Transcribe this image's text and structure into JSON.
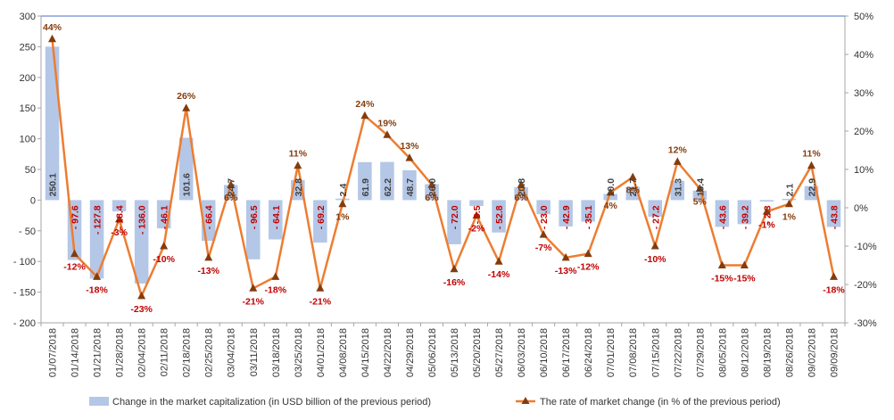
{
  "chart_data": {
    "type": "bar",
    "categories": [
      "01/07/2018",
      "01/14/2018",
      "01/21/2018",
      "01/28/2018",
      "02/04/2018",
      "02/11/2018",
      "02/18/2018",
      "02/25/2018",
      "03/04/2018",
      "03/11/2018",
      "03/18/2018",
      "03/25/2018",
      "04/01/2018",
      "04/08/2018",
      "04/15/2018",
      "04/22/2018",
      "04/29/2018",
      "05/06/2018",
      "05/13/2018",
      "05/20/2018",
      "05/27/2018",
      "06/03/2018",
      "06/10/2018",
      "06/17/2018",
      "06/24/2018",
      "07/01/2018",
      "07/08/2018",
      "07/15/2018",
      "07/22/2018",
      "07/29/2018",
      "08/05/2018",
      "08/12/2018",
      "08/19/2018",
      "08/26/2018",
      "09/02/2018",
      "09/09/2018"
    ],
    "series": [
      {
        "name": "Change in the market capitalization  (in USD billion of the previous period)",
        "type": "bar",
        "axis": "left",
        "values": [
          250.1,
          -97.6,
          -127.8,
          -18.4,
          -136.0,
          -46.1,
          101.6,
          -66.4,
          24.7,
          -96.5,
          -64.1,
          32.8,
          -69.2,
          2.4,
          61.9,
          62.2,
          48.7,
          26.0,
          -72.0,
          -9.5,
          -52.8,
          20.8,
          -23.0,
          -42.9,
          -35.1,
          10.0,
          21.7,
          -27.2,
          31.3,
          15.4,
          -43.6,
          -39.2,
          -2.3,
          2.1,
          22.9,
          -43.8
        ],
        "labels": [
          "250.1",
          "- 97.6",
          "- 127.8",
          "- 18.4",
          "- 136.0",
          "- 46.1",
          "101.6",
          "- 66.4",
          "24.7",
          "- 96.5",
          "- 64.1",
          "32.8",
          "- 69.2",
          "2.4",
          "61.9",
          "62.2",
          "48.7",
          "26.0",
          "- 72.0",
          "- 9.5",
          "- 52.8",
          "20.8",
          "- 23.0",
          "- 42.9",
          "- 35.1",
          "10.0",
          "21.7",
          "- 27.2",
          "31.3",
          "15.4",
          "- 43.6",
          "- 39.2",
          "- 2.3",
          "2.1",
          "22.9",
          "- 43.8"
        ]
      },
      {
        "name": "The rate of market change (in % of the previous period)",
        "type": "line",
        "axis": "right",
        "values": [
          44,
          -12,
          -18,
          -3,
          -23,
          -10,
          26,
          -13,
          6,
          -21,
          -18,
          11,
          -21,
          1,
          24,
          19,
          13,
          6,
          -16,
          -2,
          -14,
          6,
          -7,
          -13,
          -12,
          4,
          8,
          -10,
          12,
          5,
          -15,
          -15,
          -1,
          1,
          11,
          -18
        ],
        "labels": [
          "44%",
          "-12%",
          "-18%",
          "-3%",
          "-23%",
          "-10%",
          "26%",
          "-13%",
          "6%",
          "-21%",
          "-18%",
          "11%",
          "-21%",
          "1%",
          "24%",
          "19%",
          "13%",
          "6%",
          "-16%",
          "-2%",
          "-14%",
          "6%",
          "-7%",
          "-13%",
          "-12%",
          "4%",
          "8%",
          "-10%",
          "12%",
          "5%",
          "-15%",
          "-15%",
          "-1%",
          "1%",
          "11%",
          "-18%"
        ]
      }
    ],
    "y_left": {
      "min": -200,
      "max": 300,
      "step": 50,
      "ticks": [
        "300",
        "250",
        "200",
        "150",
        "100",
        "50",
        "0",
        "- 50",
        "- 100",
        "- 150",
        "- 200"
      ]
    },
    "y_right": {
      "min": -30,
      "max": 50,
      "step": 10,
      "ticks": [
        "50%",
        "40%",
        "30%",
        "20%",
        "10%",
        "0%",
        "-10%",
        "-20%",
        "-30%"
      ]
    },
    "grid": false,
    "legend_position": "bottom",
    "colors": {
      "bar_fill": "#b4c7e7",
      "line": "#ed7d31",
      "marker": "#843c0c",
      "positive_label": "#404040",
      "negative_label": "#c00000",
      "axis_line": "#4472c4",
      "pct_positive": "#843c0c",
      "pct_negative": "#c00000"
    }
  }
}
